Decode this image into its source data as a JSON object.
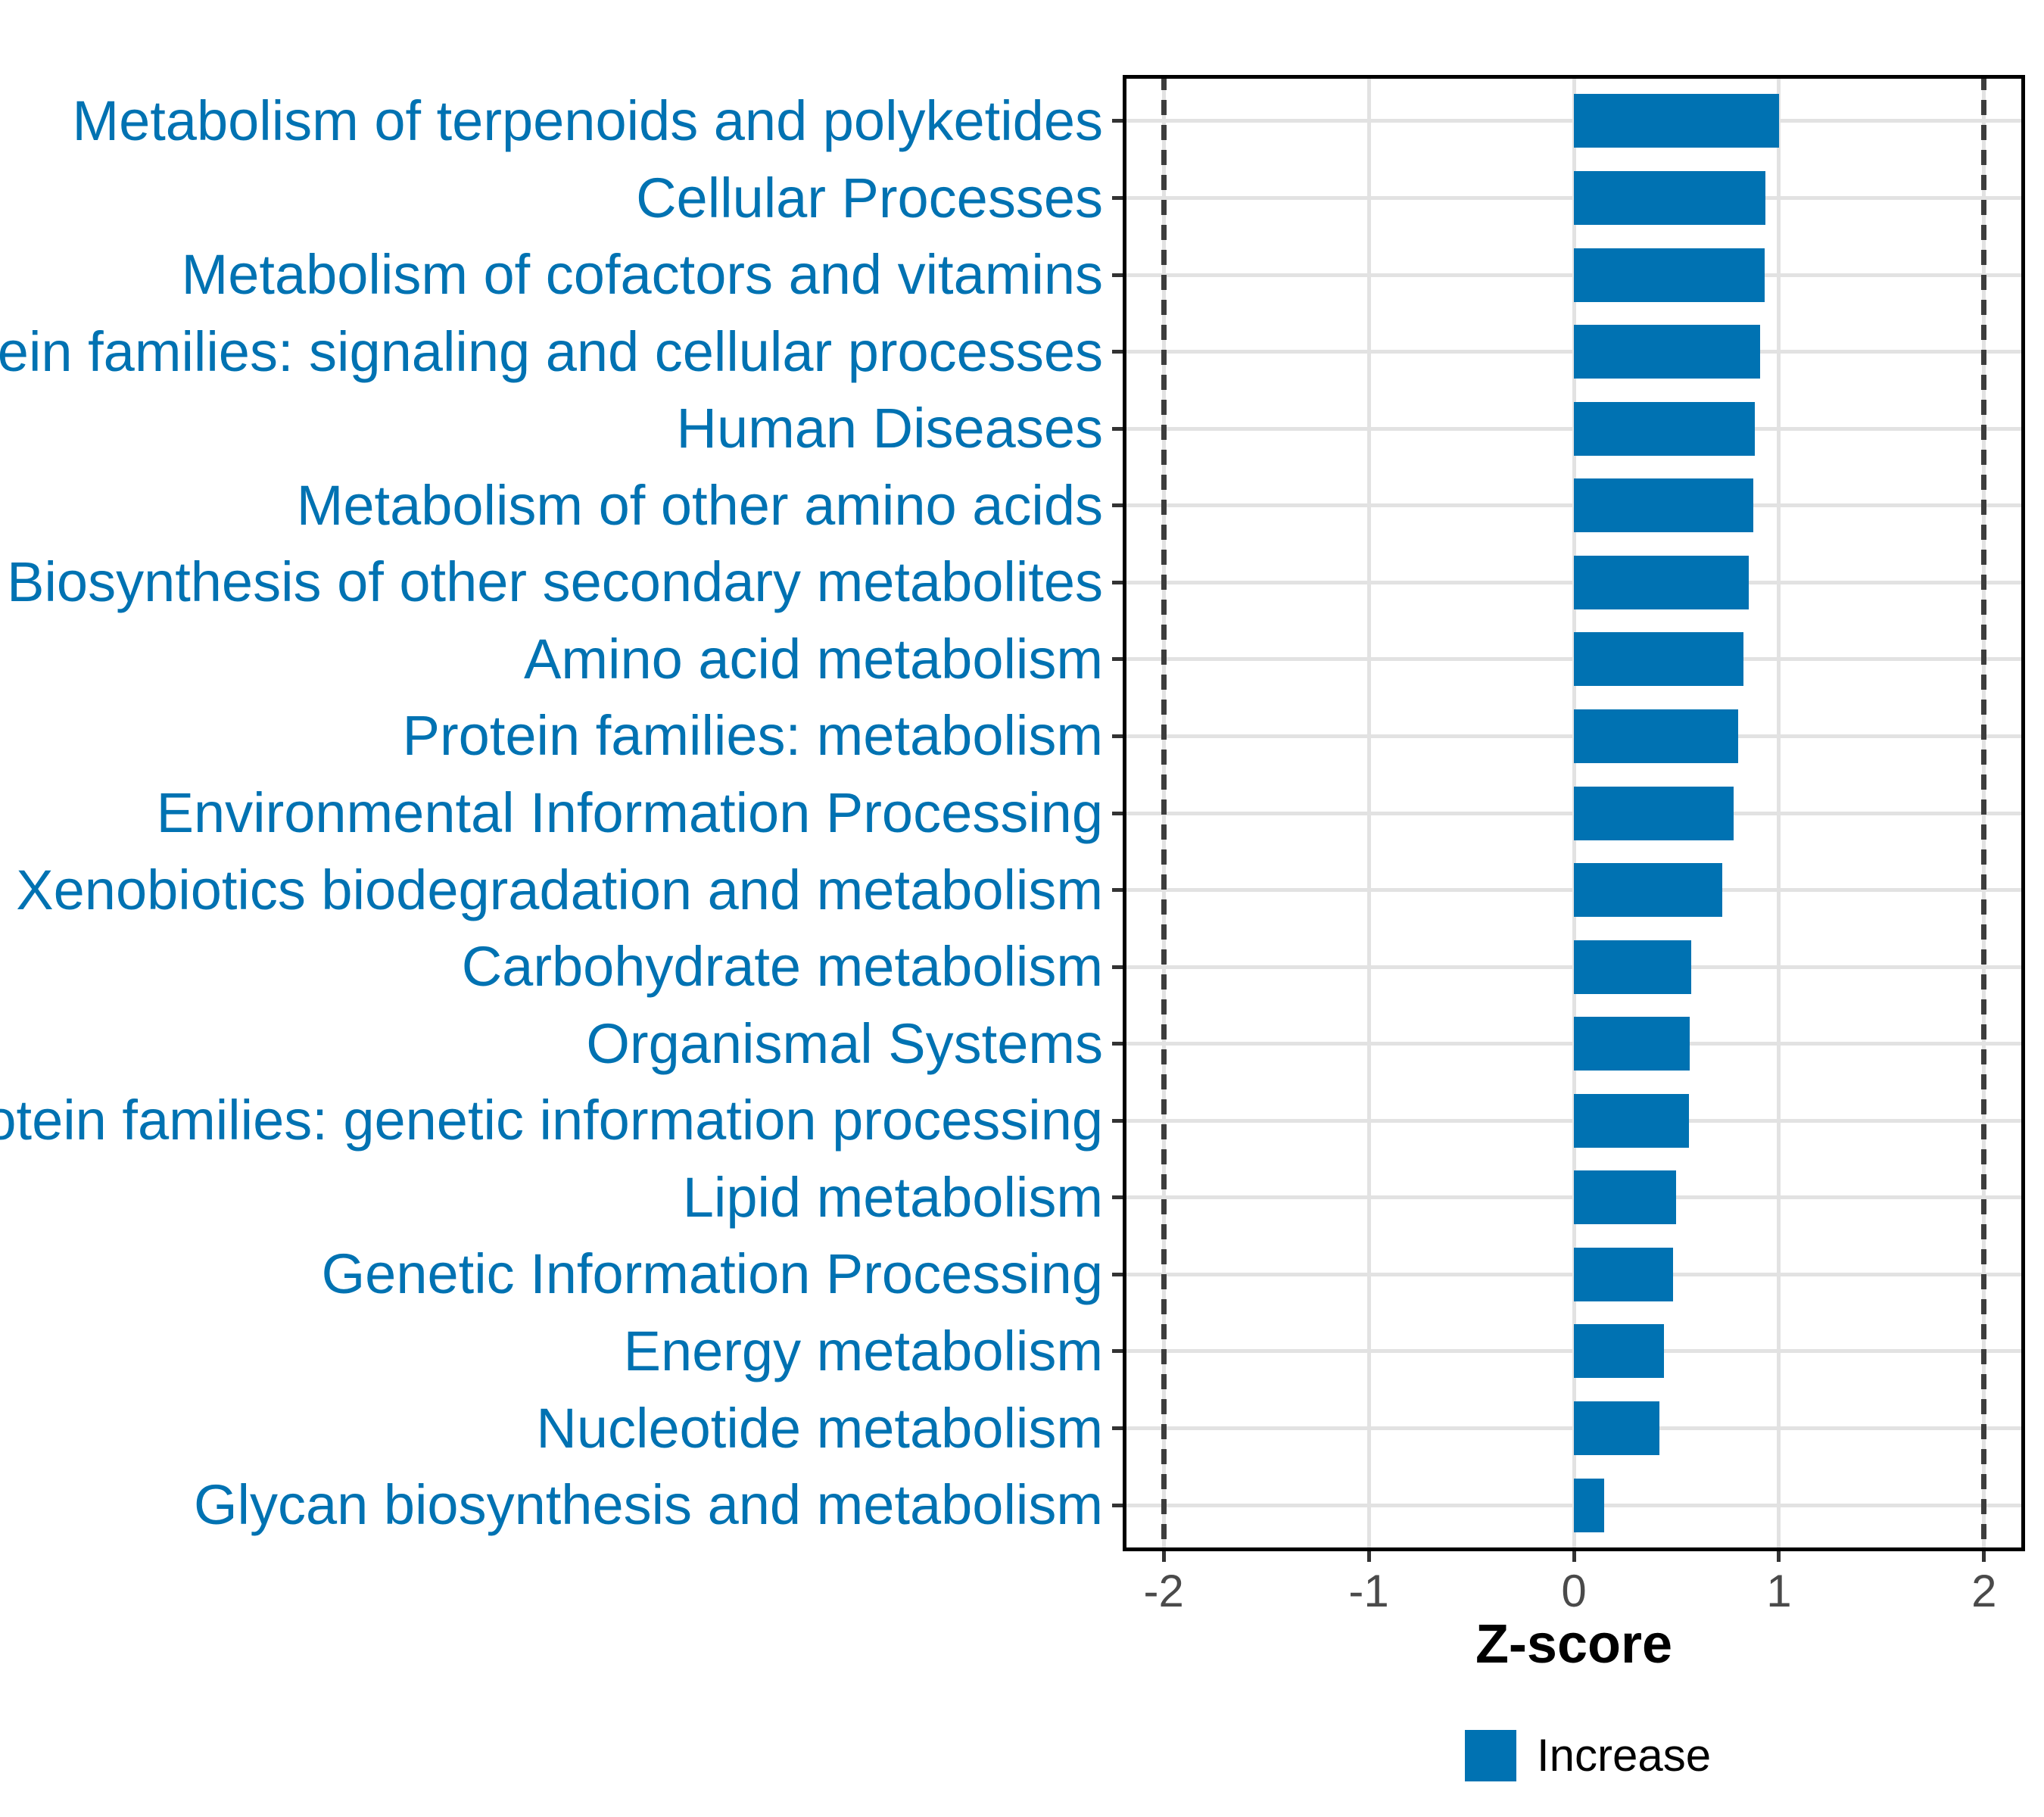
{
  "colors": {
    "bar": "#0072B2",
    "y_label_text": "#0072B2",
    "x_tick_label_text": "#4a4a4a",
    "axis_title_text": "#000000",
    "legend_text": "#000000",
    "gridline": "#e2e2e2",
    "dashed_reference_line": "#3d3d3d",
    "panel_border": "#000000",
    "background": "#ffffff"
  },
  "legend": {
    "label": "Increase",
    "color": "#0072B2",
    "position": "bottom"
  },
  "chart_data": {
    "type": "bar",
    "orientation": "horizontal",
    "title": "",
    "xlabel": "Z-score",
    "ylabel": "",
    "grid": true,
    "xlim": [
      -2.2,
      2.2
    ],
    "x_ticks": [
      -2,
      -1,
      0,
      1,
      2
    ],
    "x_tick_labels": [
      "-2",
      "-1",
      "0",
      "1",
      "2"
    ],
    "reference_lines_x": [
      -2,
      2
    ],
    "categories": [
      "Metabolism of terpenoids and polyketides",
      "Cellular Processes",
      "Metabolism of cofactors and vitamins",
      "Protein families: signaling and cellular processes",
      "Human Diseases",
      "Metabolism of other amino acids",
      "Biosynthesis of other secondary metabolites",
      "Amino acid metabolism",
      "Protein families: metabolism",
      "Environmental Information Processing",
      "Xenobiotics biodegradation and metabolism",
      "Carbohydrate metabolism",
      "Organismal Systems",
      "Protein families: genetic information processing",
      "Lipid metabolism",
      "Genetic Information Processing",
      "Energy metabolism",
      "Nucleotide metabolism",
      "Glycan biosynthesis and metabolism"
    ],
    "series": [
      {
        "name": "Increase",
        "color": "#0072B2",
        "values": [
          1.0,
          0.934,
          0.93,
          0.908,
          0.882,
          0.874,
          0.852,
          0.826,
          0.801,
          0.779,
          0.723,
          0.572,
          0.565,
          0.56,
          0.498,
          0.483,
          0.439,
          0.417,
          0.148
        ]
      }
    ]
  }
}
